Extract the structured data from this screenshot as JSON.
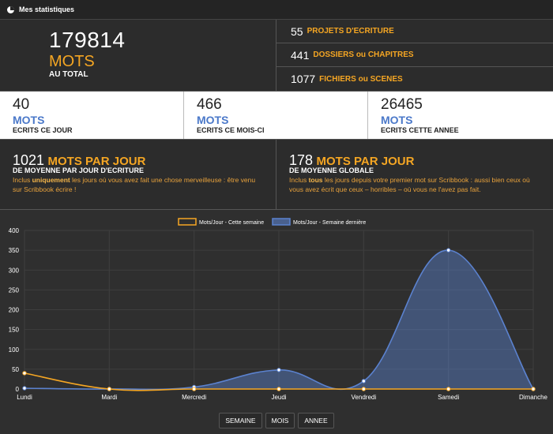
{
  "window": {
    "title": "Mes statistiques",
    "icon": "pie-chart-icon"
  },
  "total": {
    "value": "179814",
    "unit": "MOTS",
    "label": "AU TOTAL"
  },
  "projects": [
    {
      "value": "55",
      "label": "PROJETS D'ECRITURE"
    },
    {
      "value": "441",
      "label": "DOSSIERS ou CHAPITRES"
    },
    {
      "value": "1077",
      "label": "FICHIERS ou SCENES"
    }
  ],
  "periods": [
    {
      "value": "40",
      "unit": "MOTS",
      "label": "ECRITS CE JOUR"
    },
    {
      "value": "466",
      "unit": "MOTS",
      "label": "ECRITS CE MOIS-CI"
    },
    {
      "value": "26465",
      "unit": "MOTS",
      "label": "ECRITS CETTE ANNEE"
    }
  ],
  "averages": [
    {
      "value": "1021",
      "unit": "MOTS PAR JOUR",
      "label": "DE MOYENNE PAR JOUR D'ECRITURE",
      "desc_before": "Inclus ",
      "desc_strong": "uniquement",
      "desc_after": " les jours où vous avez fait une chose merveilleuse : être venu sur Scribbook écrire !"
    },
    {
      "value": "178",
      "unit": "MOTS PAR JOUR",
      "label": "DE MOYENNE GLOBALE",
      "desc_before": "Inclus ",
      "desc_strong": "tous",
      "desc_after": " les jours depuis votre premier mot sur Scribbook : aussi bien ceux où vous avez écrit que ceux – horribles – où vous ne l'avez pas fait."
    }
  ],
  "chart_data": {
    "type": "area",
    "categories": [
      "Lundi",
      "Mardi",
      "Mercredi",
      "Jeudi",
      "Vendredi",
      "Samedi",
      "Dimanche"
    ],
    "series": [
      {
        "name": "Mots/Jour - Cette semaine",
        "values": [
          40,
          0,
          0,
          0,
          0,
          0,
          0
        ],
        "color": "#f5a623"
      },
      {
        "name": "Mots/Jour - Semaine dernière",
        "values": [
          2,
          0,
          5,
          48,
          20,
          350,
          0
        ],
        "color": "#5b82cf"
      }
    ],
    "ylim": [
      0,
      400
    ],
    "yticks": [
      "0",
      "50",
      "100",
      "150",
      "200",
      "250",
      "300",
      "350",
      "400"
    ],
    "grid": true,
    "legend": "top"
  },
  "buttons": [
    "SEMAINE",
    "MOIS",
    "ANNEE"
  ],
  "colors": {
    "accent": "#f5a623",
    "blue": "#4a78c9",
    "background": "#2f2f2f"
  }
}
